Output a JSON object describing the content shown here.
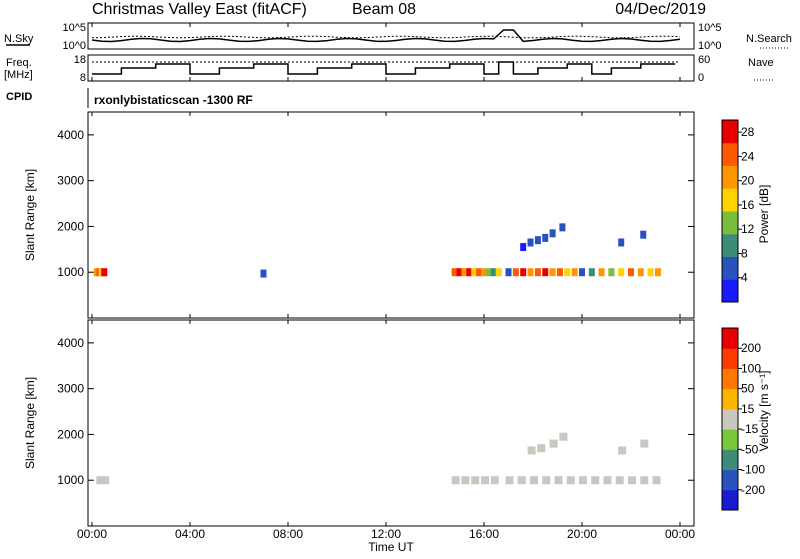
{
  "header": {
    "title": "Christmas Valley East (fitACF)",
    "beam": "Beam 08",
    "date": "04/Dec/2019"
  },
  "top_panels": {
    "nsky_label": "N.Sky",
    "nsearch_label": "N.Search",
    "nsky_ticks": [
      "10^5",
      "10^0"
    ],
    "nsearch_ticks": [
      "10^5",
      "10^0"
    ],
    "freq_label": "Freq.",
    "freq_unit": "[MHz]",
    "freq_ticks": [
      "18",
      "8"
    ],
    "nave_label": "Nave",
    "nave_ticks": [
      "60",
      "0"
    ],
    "cpid_label": "CPID",
    "cpid_text": "rxonlybistaticscan -1300 RF"
  },
  "chart_data": [
    {
      "type": "scatter",
      "name": "power",
      "ylabel": "Slant Range [km]",
      "xlabel": "Time UT",
      "xlim": [
        0,
        24
      ],
      "ylim": [
        0,
        4500
      ],
      "y_ticks": [
        "1000",
        "2000",
        "3000",
        "4000"
      ],
      "colorbar": {
        "label": "Power [dB]",
        "ticks": [
          "4",
          "8",
          "12",
          "16",
          "20",
          "24",
          "28"
        ],
        "range": [
          0,
          30
        ],
        "colors": [
          "#1a1aff",
          "#2a52be",
          "#3c8c78",
          "#78be3c",
          "#ffd200",
          "#ff9600",
          "#ff5a00",
          "#e60000"
        ]
      },
      "points": [
        {
          "t": 0.2,
          "r": 1000,
          "c": 5
        },
        {
          "t": 0.3,
          "r": 1000,
          "c": 6
        },
        {
          "t": 0.4,
          "r": 1000,
          "c": 4
        },
        {
          "t": 0.5,
          "r": 1000,
          "c": 7
        },
        {
          "t": 7.0,
          "r": 970,
          "c": 1
        },
        {
          "t": 14.8,
          "r": 1000,
          "c": 6
        },
        {
          "t": 15.0,
          "r": 1000,
          "c": 7
        },
        {
          "t": 15.2,
          "r": 1000,
          "c": 5
        },
        {
          "t": 15.4,
          "r": 1000,
          "c": 7
        },
        {
          "t": 15.6,
          "r": 1000,
          "c": 4
        },
        {
          "t": 15.8,
          "r": 1000,
          "c": 6
        },
        {
          "t": 16.0,
          "r": 1000,
          "c": 5
        },
        {
          "t": 16.2,
          "r": 1000,
          "c": 3
        },
        {
          "t": 16.4,
          "r": 1000,
          "c": 2
        },
        {
          "t": 16.6,
          "r": 1000,
          "c": 4
        },
        {
          "t": 17.0,
          "r": 1000,
          "c": 1
        },
        {
          "t": 17.3,
          "r": 1000,
          "c": 6
        },
        {
          "t": 17.6,
          "r": 1000,
          "c": 7
        },
        {
          "t": 17.9,
          "r": 1000,
          "c": 5
        },
        {
          "t": 18.2,
          "r": 1000,
          "c": 6
        },
        {
          "t": 18.5,
          "r": 1000,
          "c": 7
        },
        {
          "t": 18.8,
          "r": 1000,
          "c": 5
        },
        {
          "t": 19.1,
          "r": 1000,
          "c": 6
        },
        {
          "t": 19.4,
          "r": 1000,
          "c": 4
        },
        {
          "t": 19.7,
          "r": 1000,
          "c": 5
        },
        {
          "t": 20.0,
          "r": 1000,
          "c": 1
        },
        {
          "t": 20.4,
          "r": 1000,
          "c": 2
        },
        {
          "t": 20.8,
          "r": 1000,
          "c": 5
        },
        {
          "t": 21.2,
          "r": 1000,
          "c": 3
        },
        {
          "t": 21.6,
          "r": 1000,
          "c": 4
        },
        {
          "t": 22.0,
          "r": 1000,
          "c": 6
        },
        {
          "t": 22.4,
          "r": 1000,
          "c": 5
        },
        {
          "t": 22.8,
          "r": 1000,
          "c": 4
        },
        {
          "t": 23.1,
          "r": 1000,
          "c": 5
        },
        {
          "t": 17.9,
          "r": 1650,
          "c": 1
        },
        {
          "t": 18.2,
          "r": 1700,
          "c": 1
        },
        {
          "t": 18.5,
          "r": 1750,
          "c": 1
        },
        {
          "t": 18.8,
          "r": 1850,
          "c": 1
        },
        {
          "t": 19.2,
          "r": 1980,
          "c": 1
        },
        {
          "t": 17.6,
          "r": 1550,
          "c": 0
        },
        {
          "t": 21.6,
          "r": 1650,
          "c": 1
        },
        {
          "t": 22.5,
          "r": 1820,
          "c": 1
        }
      ]
    },
    {
      "type": "scatter",
      "name": "velocity",
      "ylabel": "Slant Range [km]",
      "xlabel": "Time UT",
      "xlim": [
        0,
        24
      ],
      "ylim": [
        0,
        4500
      ],
      "x_ticks": [
        "00:00",
        "04:00",
        "08:00",
        "12:00",
        "16:00",
        "20:00",
        "00:00"
      ],
      "y_ticks": [
        "1000",
        "2000",
        "3000",
        "4000"
      ],
      "colorbar": {
        "label": "Velocity [m s⁻¹]",
        "ticks": [
          "200",
          "100",
          "50",
          "15",
          "-15",
          "-50",
          "-100",
          "-200"
        ],
        "colors": [
          "#1a1ad2",
          "#2a52be",
          "#3c8c78",
          "#78c83c",
          "#c8c8c0",
          "#ffb400",
          "#ff7800",
          "#ff3c00",
          "#e60000"
        ]
      },
      "points": [
        {
          "t": 0.3,
          "r": 1000
        },
        {
          "t": 0.5,
          "r": 1000
        },
        {
          "t": 14.8,
          "r": 1000
        },
        {
          "t": 15.2,
          "r": 1000
        },
        {
          "t": 15.6,
          "r": 1000
        },
        {
          "t": 16.0,
          "r": 1000
        },
        {
          "t": 16.4,
          "r": 1000
        },
        {
          "t": 17.0,
          "r": 1000
        },
        {
          "t": 17.5,
          "r": 1000
        },
        {
          "t": 18.0,
          "r": 1000
        },
        {
          "t": 18.5,
          "r": 1000
        },
        {
          "t": 19.0,
          "r": 1000
        },
        {
          "t": 19.5,
          "r": 1000
        },
        {
          "t": 20.0,
          "r": 1000
        },
        {
          "t": 20.5,
          "r": 1000
        },
        {
          "t": 21.0,
          "r": 1000
        },
        {
          "t": 21.5,
          "r": 1000
        },
        {
          "t": 22.0,
          "r": 1000
        },
        {
          "t": 22.5,
          "r": 1000
        },
        {
          "t": 23.0,
          "r": 1000
        },
        {
          "t": 17.9,
          "r": 1650
        },
        {
          "t": 18.3,
          "r": 1700
        },
        {
          "t": 18.8,
          "r": 1800
        },
        {
          "t": 19.2,
          "r": 1950
        },
        {
          "t": 21.6,
          "r": 1650
        },
        {
          "t": 22.5,
          "r": 1800
        }
      ]
    }
  ]
}
